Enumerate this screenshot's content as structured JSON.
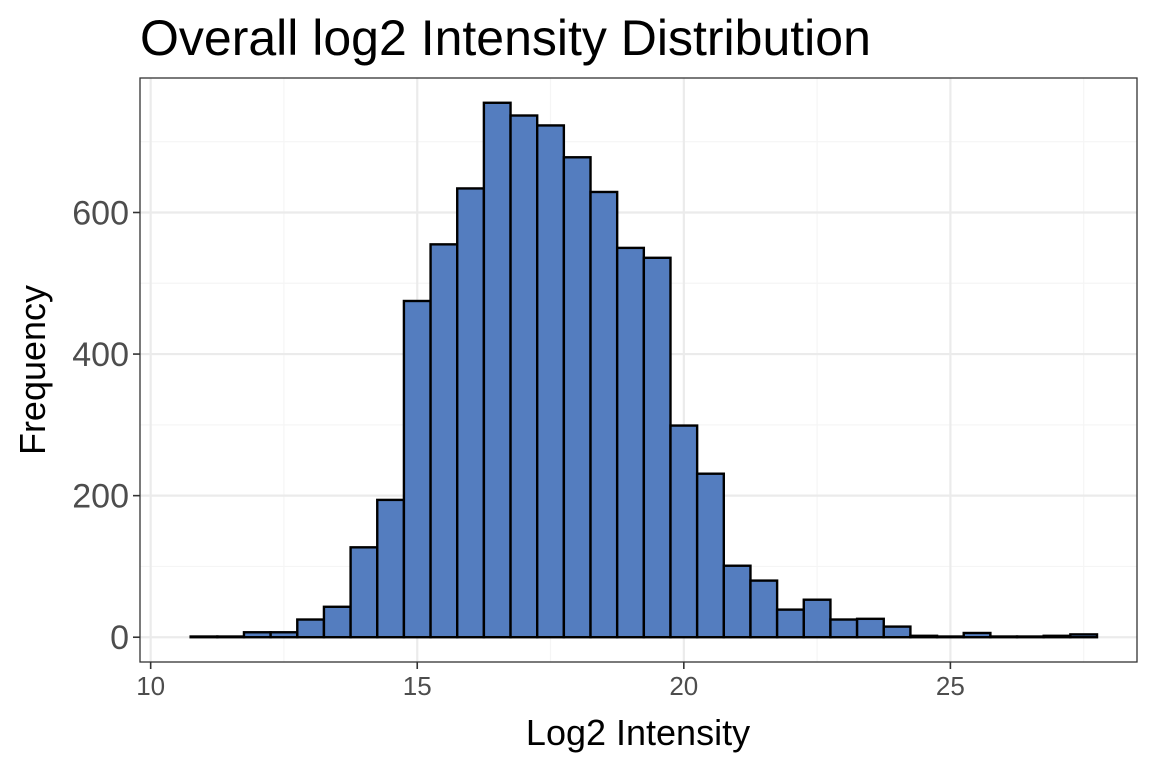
{
  "chart_data": {
    "type": "bar",
    "title": "Overall log2 Intensity Distribution",
    "xlabel": "Log2 Intensity",
    "ylabel": "Frequency",
    "xlim": [
      9.8,
      28.5
    ],
    "ylim": [
      -35,
      790
    ],
    "x_ticks": [
      10,
      15,
      20,
      25
    ],
    "y_ticks": [
      0,
      200,
      400,
      600
    ],
    "bin_width": 0.5,
    "bins": [
      {
        "start": 10.75,
        "end": 11.25,
        "count": 1
      },
      {
        "start": 11.25,
        "end": 11.75,
        "count": 1
      },
      {
        "start": 11.75,
        "end": 12.25,
        "count": 7
      },
      {
        "start": 12.25,
        "end": 12.75,
        "count": 7
      },
      {
        "start": 12.75,
        "end": 13.25,
        "count": 25
      },
      {
        "start": 13.25,
        "end": 13.75,
        "count": 43
      },
      {
        "start": 13.75,
        "end": 14.25,
        "count": 127
      },
      {
        "start": 14.25,
        "end": 14.75,
        "count": 194
      },
      {
        "start": 14.75,
        "end": 15.25,
        "count": 475
      },
      {
        "start": 15.25,
        "end": 15.75,
        "count": 555
      },
      {
        "start": 15.75,
        "end": 16.25,
        "count": 634
      },
      {
        "start": 16.25,
        "end": 16.75,
        "count": 755
      },
      {
        "start": 16.75,
        "end": 17.25,
        "count": 737
      },
      {
        "start": 17.25,
        "end": 17.75,
        "count": 723
      },
      {
        "start": 17.75,
        "end": 18.25,
        "count": 678
      },
      {
        "start": 18.25,
        "end": 18.75,
        "count": 629
      },
      {
        "start": 18.75,
        "end": 19.25,
        "count": 550
      },
      {
        "start": 19.25,
        "end": 19.75,
        "count": 536
      },
      {
        "start": 19.75,
        "end": 20.25,
        "count": 299
      },
      {
        "start": 20.25,
        "end": 20.75,
        "count": 231
      },
      {
        "start": 20.75,
        "end": 21.25,
        "count": 101
      },
      {
        "start": 21.25,
        "end": 21.75,
        "count": 80
      },
      {
        "start": 21.75,
        "end": 22.25,
        "count": 39
      },
      {
        "start": 22.25,
        "end": 22.75,
        "count": 53
      },
      {
        "start": 22.75,
        "end": 23.25,
        "count": 25
      },
      {
        "start": 23.25,
        "end": 23.75,
        "count": 26
      },
      {
        "start": 23.75,
        "end": 24.25,
        "count": 15
      },
      {
        "start": 24.25,
        "end": 24.75,
        "count": 2
      },
      {
        "start": 24.75,
        "end": 25.25,
        "count": 1
      },
      {
        "start": 25.25,
        "end": 25.75,
        "count": 6
      },
      {
        "start": 25.75,
        "end": 26.25,
        "count": 1
      },
      {
        "start": 26.25,
        "end": 26.75,
        "count": 1
      },
      {
        "start": 26.75,
        "end": 27.25,
        "count": 2
      },
      {
        "start": 27.25,
        "end": 27.75,
        "count": 4
      }
    ],
    "grid": true,
    "colors": {
      "bar_fill": "#547dbf",
      "bar_stroke": "#000000",
      "grid_major": "#ebebeb",
      "grid_minor": "#f5f5f5",
      "panel_border": "#333333"
    }
  }
}
